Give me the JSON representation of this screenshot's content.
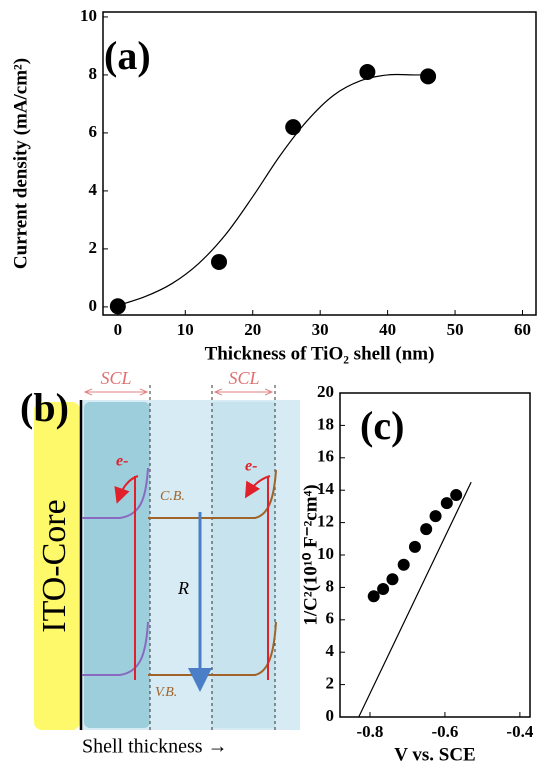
{
  "chart_data": [
    {
      "type": "scatter",
      "label": "(a)",
      "x_label": "Thickness of TiO₂ shell (nm)",
      "y_label": "Current density (mA/cm²)",
      "series": [
        {
          "x": [
            0,
            15,
            26,
            37,
            46
          ],
          "values": [
            0.02,
            1.55,
            6.2,
            8.1,
            7.95
          ],
          "color": "#000000",
          "marker": "circle"
        },
        {
          "x": [
            0,
            4,
            8,
            12,
            16,
            20,
            24,
            28,
            32,
            36,
            40,
            44,
            46
          ],
          "values": [
            0.05,
            0.35,
            0.8,
            1.5,
            2.5,
            3.8,
            5.2,
            6.4,
            7.3,
            7.8,
            8.0,
            8.0,
            8.0
          ],
          "color": "#000000",
          "marker": "line"
        }
      ],
      "xlim": [
        -2.2,
        62
      ],
      "ylim": [
        -0.28,
        10.17
      ],
      "xticks": [
        0,
        10,
        20,
        30,
        40,
        50,
        60
      ],
      "yticks": [
        0,
        2,
        4,
        6,
        8,
        10
      ]
    },
    {
      "type": "scatter",
      "label": "(c)",
      "x_label": "V vs. SCE",
      "y_label": "1/C²(10¹⁰ F⁻²cm⁴)",
      "series": [
        {
          "x": [
            -0.79,
            -0.765,
            -0.74,
            -0.71,
            -0.68,
            -0.65,
            -0.625,
            -0.595,
            -0.57
          ],
          "values": [
            7.45,
            7.9,
            8.5,
            9.4,
            10.5,
            11.6,
            12.4,
            13.2,
            13.7
          ],
          "color": "#000000",
          "marker": "circle"
        },
        {
          "x": [
            -0.83,
            -0.53
          ],
          "values": [
            0,
            14.5
          ],
          "color": "#000000",
          "marker": "line"
        }
      ],
      "xlim": [
        -0.88,
        -0.373
      ],
      "ylim": [
        0,
        20
      ],
      "xticks": [
        -0.8,
        -0.6,
        -0.4
      ],
      "yticks": [
        0,
        2,
        4,
        6,
        8,
        10,
        12,
        14,
        16,
        18,
        20
      ]
    }
  ],
  "diagram": {
    "label": "(b)",
    "scl_left": "SCL",
    "scl_right": "SCL",
    "core": "ITO-Core",
    "electron_left": "e-",
    "electron_right": "e-",
    "conduction_band": "C.B.",
    "recombination": "R",
    "valence_band": "V.B.",
    "axis": "Shell thickness →"
  }
}
